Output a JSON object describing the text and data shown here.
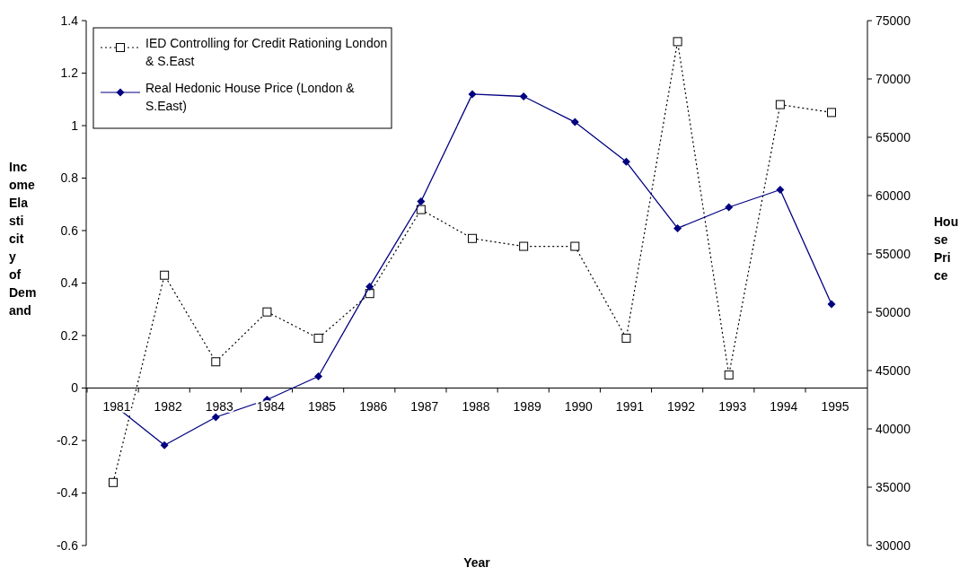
{
  "chart_data": {
    "type": "line",
    "xlabel": "Year",
    "ylabel": "Income Elasticity of Demand",
    "y2label": "House Price",
    "categories": [
      "1981",
      "1982",
      "1983",
      "1984",
      "1985",
      "1986",
      "1987",
      "1988",
      "1989",
      "1990",
      "1991",
      "1992",
      "1993",
      "1994",
      "1995"
    ],
    "series": [
      {
        "name": "IED Controlling for Credit Rationing London & S.East",
        "color": "#000000",
        "marker": "square",
        "line_style": "dotted",
        "values": [
          -0.36,
          0.43,
          0.1,
          0.29,
          0.19,
          0.36,
          0.68,
          0.57,
          0.54,
          0.54,
          0.19,
          1.32,
          0.05,
          1.08,
          1.05
        ]
      },
      {
        "name": "Real Hedonic House Price (London & S.East)",
        "color": "#000080",
        "marker": "diamond",
        "line_style": "solid",
        "axis": "y2",
        "values": [
          42100,
          38600,
          41000,
          42500,
          44500,
          52200,
          59500,
          68700,
          68500,
          66300,
          62900,
          57200,
          59000,
          60500,
          50700
        ]
      }
    ],
    "ylim": [
      -0.6,
      1.4
    ],
    "yticks": [
      -0.6,
      -0.4,
      -0.2,
      0,
      0.2,
      0.4,
      0.6,
      0.8,
      1,
      1.2,
      1.4
    ],
    "y2lim": [
      30000,
      75000
    ],
    "y2ticks": [
      30000,
      35000,
      40000,
      45000,
      50000,
      55000,
      60000,
      65000,
      70000,
      75000
    ],
    "grid": false,
    "legend": "top left"
  }
}
